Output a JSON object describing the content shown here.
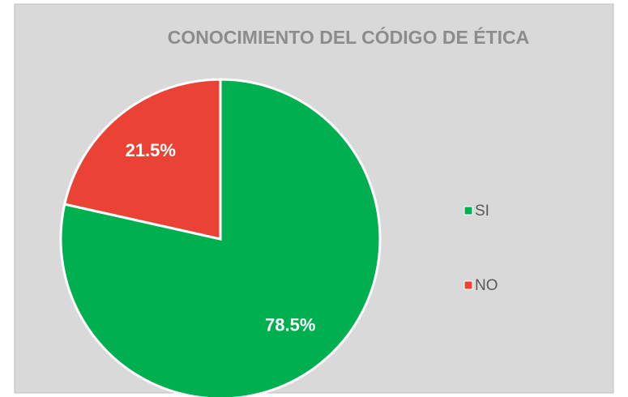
{
  "chart_data": {
    "type": "pie",
    "title": "CONOCIMIENTO DEL CÓDIGO DE ÉTICA",
    "categories": [
      "SI",
      "NO"
    ],
    "values": [
      78.5,
      21.5
    ],
    "value_labels": [
      "78.5%",
      "21.5%"
    ],
    "colors": [
      "#00b050",
      "#ea4335"
    ],
    "legend": "right"
  }
}
